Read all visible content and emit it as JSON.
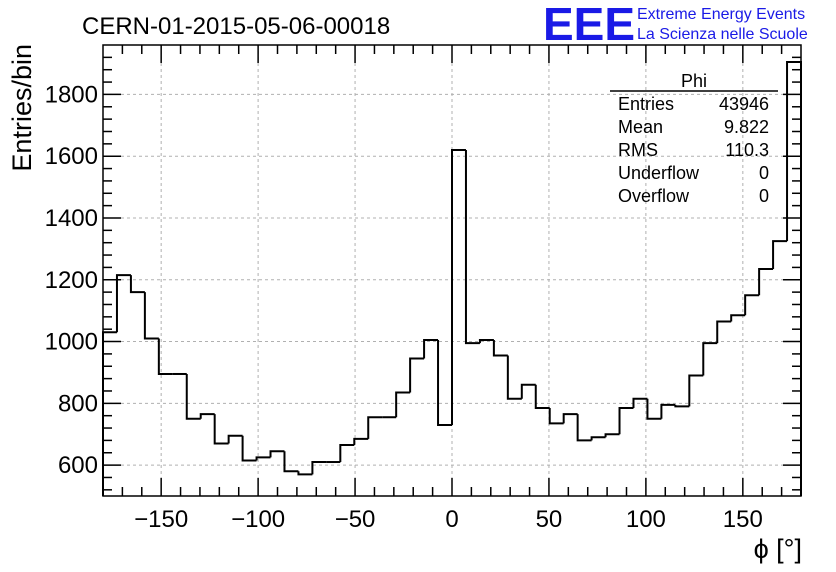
{
  "header": {
    "title": "CERN-01-2015-05-06-00018",
    "logo_mark": "EEE",
    "logo_line1": "Extreme Energy Events",
    "logo_line2": "La Scienza nelle Scuole",
    "logo_color": "#1a1ae6"
  },
  "stats": {
    "name": "Phi",
    "rows": [
      {
        "label": "Entries",
        "value": "43946"
      },
      {
        "label": "Mean",
        "value": "9.822"
      },
      {
        "label": "RMS",
        "value": "110.3"
      },
      {
        "label": "Underflow",
        "value": "0"
      },
      {
        "label": "Overflow",
        "value": "0"
      }
    ]
  },
  "chart_data": {
    "type": "bar",
    "histogram": true,
    "xlabel": "ϕ [°]",
    "ylabel": "Entries/bin",
    "xlim": [
      -180,
      180
    ],
    "ylim": [
      500,
      1960
    ],
    "bin_width": 7.2,
    "x_ticks": [
      -150,
      -100,
      -50,
      0,
      50,
      100,
      150
    ],
    "x_tick_labels": [
      "−150",
      "−100",
      "−50",
      "0",
      "50",
      "100",
      "150"
    ],
    "y_ticks": [
      600,
      800,
      1000,
      1200,
      1400,
      1600,
      1800
    ],
    "y_tick_labels": [
      "600",
      "800",
      "1000",
      "1200",
      "1400",
      "1600",
      "1800"
    ],
    "grid": true,
    "values": [
      1030,
      1215,
      1160,
      1010,
      895,
      895,
      750,
      765,
      670,
      695,
      615,
      625,
      645,
      580,
      570,
      610,
      610,
      665,
      685,
      755,
      755,
      835,
      945,
      1005,
      730,
      1620,
      995,
      1005,
      955,
      815,
      860,
      785,
      735,
      765,
      680,
      690,
      700,
      785,
      815,
      750,
      795,
      790,
      890,
      995,
      1065,
      1085,
      1150,
      1235,
      1325,
      1905
    ]
  }
}
